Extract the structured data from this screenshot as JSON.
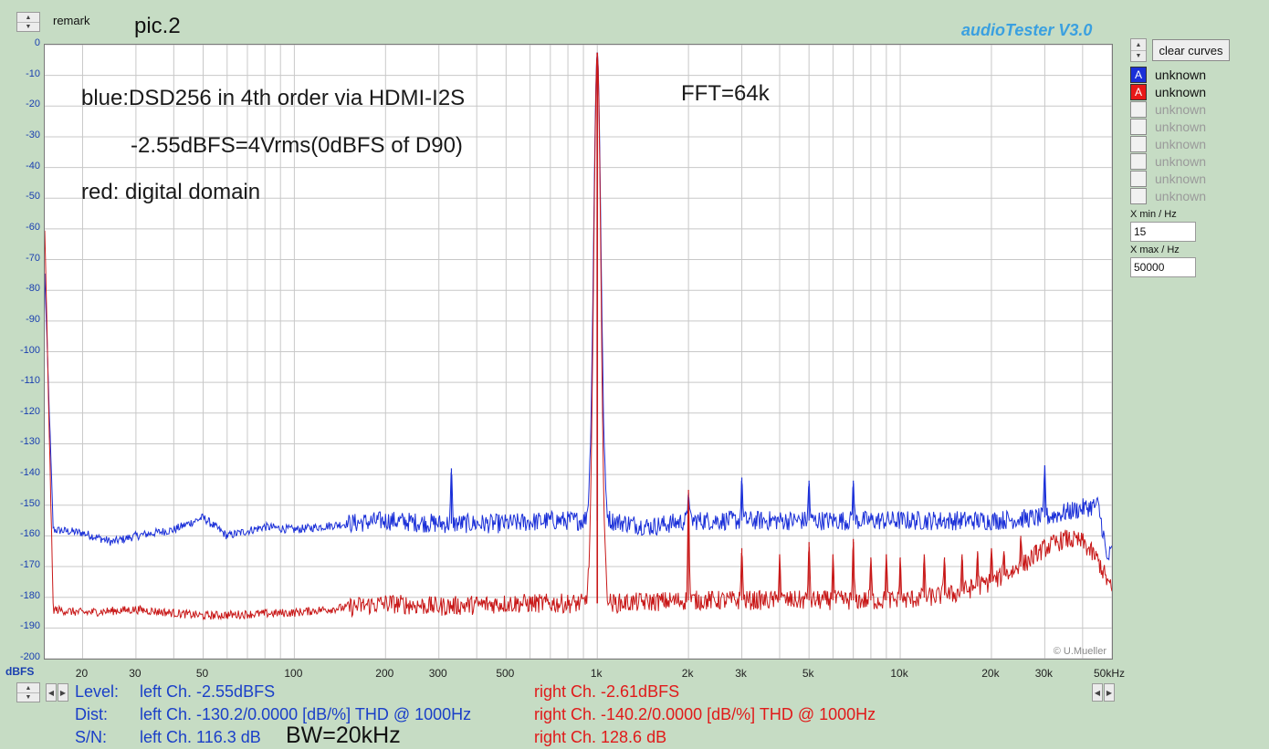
{
  "header": {
    "remark_label": "remark",
    "remark_text": "pic.2",
    "app_title": "audioTester  V3.0",
    "clear_button": "clear curves"
  },
  "annotations": {
    "line1": "blue:DSD256 in 4th order via HDMI-I2S",
    "line2": "-2.55dBFS=4Vrms(0dBFS of D90)",
    "line3": "red: digital domain",
    "fft": "FFT=64k",
    "copyright": "© U.Mueller"
  },
  "legend": [
    {
      "letter": "A",
      "label": "unknown",
      "color": "#1a2fd8",
      "active": true
    },
    {
      "letter": "A",
      "label": "unknown",
      "color": "#e81818",
      "active": true
    },
    {
      "letter": "",
      "label": "unknown",
      "active": false
    },
    {
      "letter": "",
      "label": "unknown",
      "active": false
    },
    {
      "letter": "",
      "label": "unknown",
      "active": false
    },
    {
      "letter": "",
      "label": "unknown",
      "active": false
    },
    {
      "letter": "",
      "label": "unknown",
      "active": false
    },
    {
      "letter": "",
      "label": "unknown",
      "active": false
    }
  ],
  "xrange": {
    "xmin_label": "X min / Hz",
    "xmin_value": "15",
    "xmax_label": "X max / Hz",
    "xmax_value": "50000"
  },
  "axis": {
    "y_unit": "dBFS",
    "y_ticks": [
      "0",
      "-10",
      "-20",
      "-30",
      "-40",
      "-50",
      "-60",
      "-70",
      "-80",
      "-90",
      "-100",
      "-110",
      "-120",
      "-130",
      "-140",
      "-150",
      "-160",
      "-170",
      "-180",
      "-190",
      "-200"
    ],
    "x_ticks": [
      "20",
      "30",
      "50",
      "100",
      "200",
      "300",
      "500",
      "1k",
      "2k",
      "3k",
      "5k",
      "10k",
      "20k",
      "30k",
      "50kHz"
    ]
  },
  "stats": {
    "level_label": "Level:",
    "dist_label": "Dist:",
    "sn_label": "S/N:",
    "left_level": "left Ch. -2.55dBFS",
    "left_dist": "left Ch. -130.2/0.0000 [dB/%] THD @ 1000Hz",
    "left_sn": "left Ch. 116.3 dB",
    "bw": "BW=20kHz",
    "right_level": "right Ch. -2.61dBFS",
    "right_dist": "right Ch. -140.2/0.0000 [dB/%] THD @ 1000Hz",
    "right_sn": "right Ch. 128.6 dB"
  },
  "chart_data": {
    "type": "line",
    "xscale": "log",
    "xlim": [
      15,
      50000
    ],
    "ylim": [
      -200,
      0
    ],
    "ylabel": "dBFS",
    "grid": true,
    "series": [
      {
        "color": "#1a2fd8",
        "noise_floor": [
          [
            15,
            -75
          ],
          [
            16,
            -158
          ],
          [
            20,
            -159
          ],
          [
            25,
            -162
          ],
          [
            30,
            -160
          ],
          [
            40,
            -158
          ],
          [
            50,
            -154
          ],
          [
            60,
            -160
          ],
          [
            80,
            -157
          ],
          [
            100,
            -158
          ],
          [
            150,
            -156
          ],
          [
            200,
            -155
          ],
          [
            300,
            -156
          ],
          [
            500,
            -156
          ],
          [
            700,
            -155
          ],
          [
            900,
            -155
          ],
          [
            1100,
            -155
          ],
          [
            1500,
            -157
          ],
          [
            2000,
            -155
          ],
          [
            3000,
            -155
          ],
          [
            5000,
            -155
          ],
          [
            10000,
            -155
          ],
          [
            20000,
            -155
          ],
          [
            30000,
            -154
          ],
          [
            40000,
            -151
          ],
          [
            45000,
            -150
          ],
          [
            47000,
            -160
          ],
          [
            48000,
            -168
          ],
          [
            50000,
            -165
          ]
        ],
        "peaks": [
          [
            1000,
            -2.55
          ],
          [
            330,
            -138
          ],
          [
            2000,
            -146
          ],
          [
            3000,
            -141
          ],
          [
            5000,
            -142
          ],
          [
            7000,
            -142
          ],
          [
            30000,
            -137
          ]
        ]
      },
      {
        "color": "#c81818",
        "noise_floor": [
          [
            15,
            -60
          ],
          [
            16,
            -184
          ],
          [
            20,
            -185
          ],
          [
            30,
            -184
          ],
          [
            50,
            -186
          ],
          [
            100,
            -185
          ],
          [
            200,
            -182
          ],
          [
            300,
            -183
          ],
          [
            500,
            -182
          ],
          [
            900,
            -182
          ],
          [
            1100,
            -182
          ],
          [
            2000,
            -181
          ],
          [
            5000,
            -181
          ],
          [
            10000,
            -181
          ],
          [
            15000,
            -179
          ],
          [
            20000,
            -175
          ],
          [
            25000,
            -170
          ],
          [
            30000,
            -164
          ],
          [
            35000,
            -161
          ],
          [
            40000,
            -162
          ],
          [
            45000,
            -168
          ],
          [
            50000,
            -178
          ]
        ],
        "peaks": [
          [
            1000,
            -2.61
          ],
          [
            2000,
            -145
          ],
          [
            3000,
            -164
          ],
          [
            4000,
            -166
          ],
          [
            5000,
            -162
          ],
          [
            6000,
            -166
          ],
          [
            7000,
            -161
          ],
          [
            8000,
            -167
          ],
          [
            9000,
            -166
          ],
          [
            10000,
            -167
          ],
          [
            12000,
            -166
          ],
          [
            14000,
            -167
          ],
          [
            16000,
            -166
          ],
          [
            18000,
            -165
          ],
          [
            20000,
            -164
          ],
          [
            22000,
            -165
          ],
          [
            25000,
            -160
          ],
          [
            28000,
            -163
          ]
        ]
      }
    ]
  }
}
